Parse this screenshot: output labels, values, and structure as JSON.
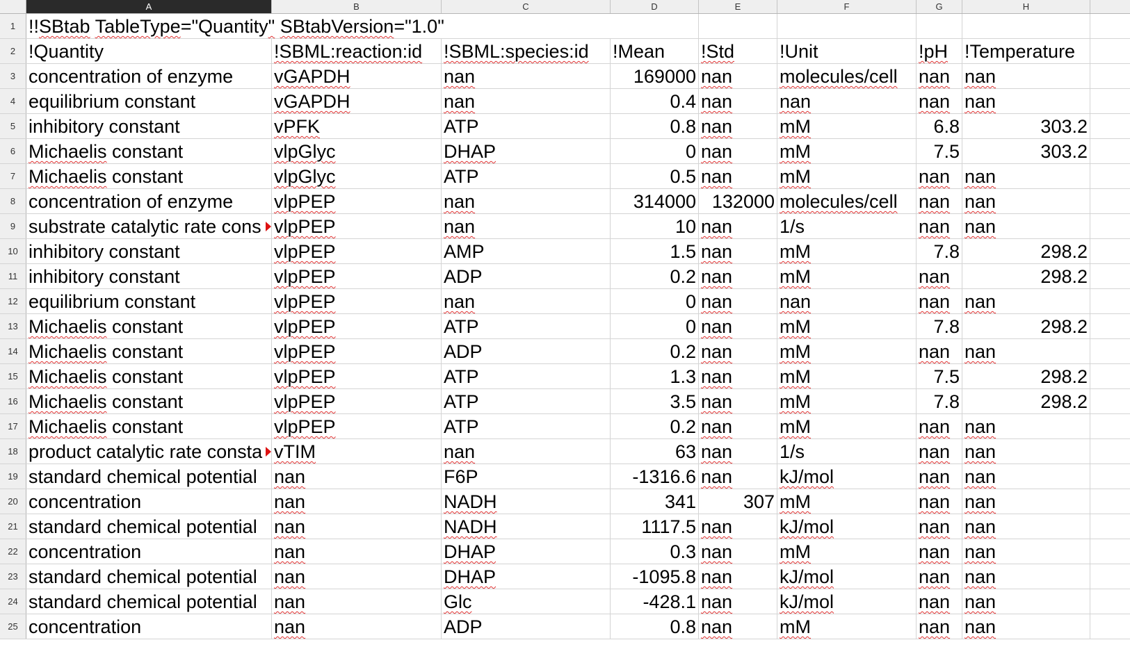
{
  "columns": [
    "A",
    "B",
    "C",
    "D",
    "E",
    "F",
    "G",
    "H"
  ],
  "selected_column": "A",
  "title_cell": {
    "parts": [
      {
        "text": "!!",
        "sq": false
      },
      {
        "text": "SBtab",
        "sq": true
      },
      {
        "text": " ",
        "sq": false
      },
      {
        "text": "TableType",
        "sq": true
      },
      {
        "text": "=\"Quantity",
        "sq": false
      },
      {
        "text": "\"",
        "sq": true
      },
      {
        "text": " ",
        "sq": false
      },
      {
        "text": "SBtabVersion",
        "sq": true
      },
      {
        "text": "=\"1.0\"",
        "sq": false
      }
    ]
  },
  "rows": [
    {
      "n": "2",
      "cells": [
        "!Quantity",
        "!SBML:reaction:id",
        "!SBML:species:id",
        "!Mean",
        "!Std",
        "!Unit",
        "!pH",
        "!Temperature"
      ]
    },
    {
      "n": "3",
      "cells": [
        "concentration of enzyme",
        "vGAPDH",
        "nan",
        "169000",
        "nan",
        "molecules/cell",
        "nan",
        "nan"
      ]
    },
    {
      "n": "4",
      "cells": [
        "equilibrium constant",
        "vGAPDH",
        "nan",
        "0.4",
        "nan",
        "nan",
        "nan",
        "nan"
      ]
    },
    {
      "n": "5",
      "cells": [
        "inhibitory constant",
        "vPFK",
        "ATP",
        "0.8",
        "nan",
        "mM",
        "6.8",
        "303.2"
      ]
    },
    {
      "n": "6",
      "cells": [
        "Michaelis constant",
        "vlpGlyc",
        "DHAP",
        "0",
        "nan",
        "mM",
        "7.5",
        "303.2"
      ]
    },
    {
      "n": "7",
      "cells": [
        "Michaelis constant",
        "vlpGlyc",
        "ATP",
        "0.5",
        "nan",
        "mM",
        "nan",
        "nan"
      ]
    },
    {
      "n": "8",
      "cells": [
        "concentration of enzyme",
        "vlpPEP",
        "nan",
        "314000",
        "132000",
        "molecules/cell",
        "nan",
        "nan"
      ]
    },
    {
      "n": "9",
      "cells": [
        "substrate catalytic rate cons",
        "vlpPEP",
        "nan",
        "10",
        "nan",
        "1/s",
        "nan",
        "nan"
      ]
    },
    {
      "n": "10",
      "cells": [
        "inhibitory constant",
        "vlpPEP",
        "AMP",
        "1.5",
        "nan",
        "mM",
        "7.8",
        "298.2"
      ]
    },
    {
      "n": "11",
      "cells": [
        "inhibitory constant",
        "vlpPEP",
        "ADP",
        "0.2",
        "nan",
        "mM",
        "nan",
        "298.2"
      ]
    },
    {
      "n": "12",
      "cells": [
        "equilibrium constant",
        "vlpPEP",
        "nan",
        "0",
        "nan",
        "nan",
        "nan",
        "nan"
      ]
    },
    {
      "n": "13",
      "cells": [
        "Michaelis constant",
        "vlpPEP",
        "ATP",
        "0",
        "nan",
        "mM",
        "7.8",
        "298.2"
      ]
    },
    {
      "n": "14",
      "cells": [
        "Michaelis constant",
        "vlpPEP",
        "ADP",
        "0.2",
        "nan",
        "mM",
        "nan",
        "nan"
      ]
    },
    {
      "n": "15",
      "cells": [
        "Michaelis constant",
        "vlpPEP",
        "ATP",
        "1.3",
        "nan",
        "mM",
        "7.5",
        "298.2"
      ]
    },
    {
      "n": "16",
      "cells": [
        "Michaelis constant",
        "vlpPEP",
        "ATP",
        "3.5",
        "nan",
        "mM",
        "7.8",
        "298.2"
      ]
    },
    {
      "n": "17",
      "cells": [
        "Michaelis constant",
        "vlpPEP",
        "ATP",
        "0.2",
        "nan",
        "mM",
        "nan",
        "nan"
      ]
    },
    {
      "n": "18",
      "cells": [
        "product catalytic rate consta",
        "vTIM",
        "nan",
        "63",
        "nan",
        "1/s",
        "nan",
        "nan"
      ]
    },
    {
      "n": "19",
      "cells": [
        "standard chemical potential",
        "nan",
        "F6P",
        "-1316.6",
        "nan",
        "kJ/mol",
        "nan",
        "nan"
      ]
    },
    {
      "n": "20",
      "cells": [
        "concentration",
        "nan",
        "NADH",
        "341",
        "307",
        "mM",
        "nan",
        "nan"
      ]
    },
    {
      "n": "21",
      "cells": [
        "standard chemical potential",
        "nan",
        "NADH",
        "1117.5",
        "nan",
        "kJ/mol",
        "nan",
        "nan"
      ]
    },
    {
      "n": "22",
      "cells": [
        "concentration",
        "nan",
        "DHAP",
        "0.3",
        "nan",
        "mM",
        "nan",
        "nan"
      ]
    },
    {
      "n": "23",
      "cells": [
        "standard chemical potential",
        "nan",
        "DHAP",
        "-1095.8",
        "nan",
        "kJ/mol",
        "nan",
        "nan"
      ]
    },
    {
      "n": "24",
      "cells": [
        "standard chemical potential",
        "nan",
        "Glc",
        "-428.1",
        "nan",
        "kJ/mol",
        "nan",
        "nan"
      ]
    },
    {
      "n": "25",
      "cells": [
        "concentration",
        "nan",
        "ADP",
        "0.8",
        "nan",
        "mM",
        "nan",
        "nan"
      ]
    }
  ],
  "overflow_rows": [
    "9",
    "18"
  ],
  "colors": {
    "selected_header": "#2a2a2a",
    "header_bg": "#efefef",
    "spell_underline": "#e03030",
    "overflow_marker": "#dd1111"
  }
}
